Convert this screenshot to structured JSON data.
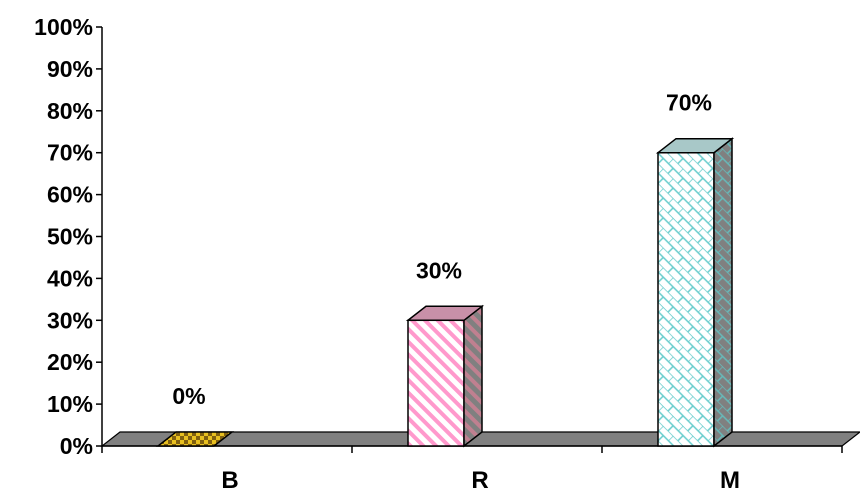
{
  "chart_data": {
    "type": "bar",
    "style": "3d-column",
    "categories": [
      "B",
      "R",
      "M"
    ],
    "values": [
      0,
      30,
      70
    ],
    "data_labels": [
      "0%",
      "30%",
      "70%"
    ],
    "ylim": [
      0,
      100
    ],
    "y_ticks": [
      "0%",
      "10%",
      "20%",
      "30%",
      "40%",
      "50%",
      "60%",
      "70%",
      "80%",
      "90%",
      "100%"
    ],
    "title": "",
    "xlabel": "",
    "ylabel": "",
    "grid": false,
    "legend": "none",
    "colors": {
      "floor": "#808080",
      "bar_B": "#e8c020",
      "bar_R": "#ff99cc",
      "bar_M": "#66cccc",
      "side_shade": "#808080",
      "outline": "#000000"
    }
  }
}
